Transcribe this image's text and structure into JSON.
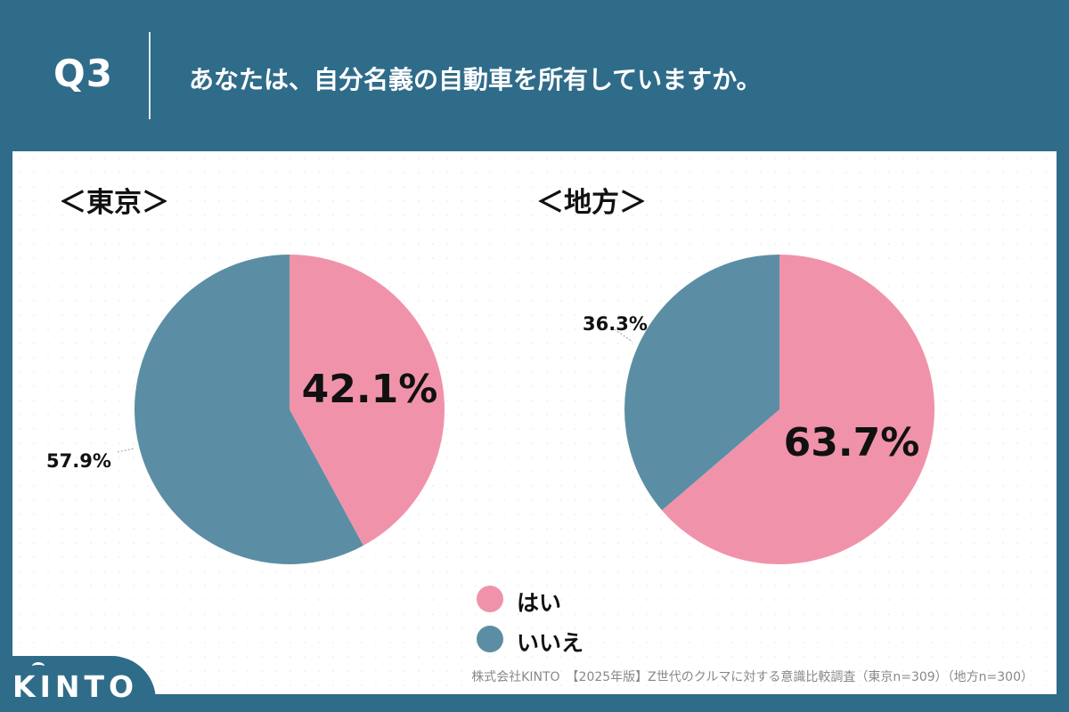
{
  "header": {
    "q_label": "Q3",
    "question": "あなたは、自分名義の自動車を所有していますか。"
  },
  "colors": {
    "yes": "#f093aa",
    "no": "#5b8ea4",
    "header_bg": "#2f6c89"
  },
  "chart_data": [
    {
      "type": "pie",
      "title": "＜東京＞",
      "categories": [
        "はい",
        "いいえ"
      ],
      "values": [
        42.1,
        57.9
      ],
      "labels": [
        "42.1%",
        "57.9%"
      ]
    },
    {
      "type": "pie",
      "title": "＜地方＞",
      "categories": [
        "はい",
        "いいえ"
      ],
      "values": [
        63.7,
        36.3
      ],
      "labels": [
        "63.7%",
        "36.3%"
      ]
    }
  ],
  "legend": [
    {
      "label": "はい"
    },
    {
      "label": "いいえ"
    }
  ],
  "source": "株式会社KINTO　【2025年版】Z世代のクルマに対する意識比較調査（東京n=309）（地方n=300）",
  "logo": "KINTO"
}
